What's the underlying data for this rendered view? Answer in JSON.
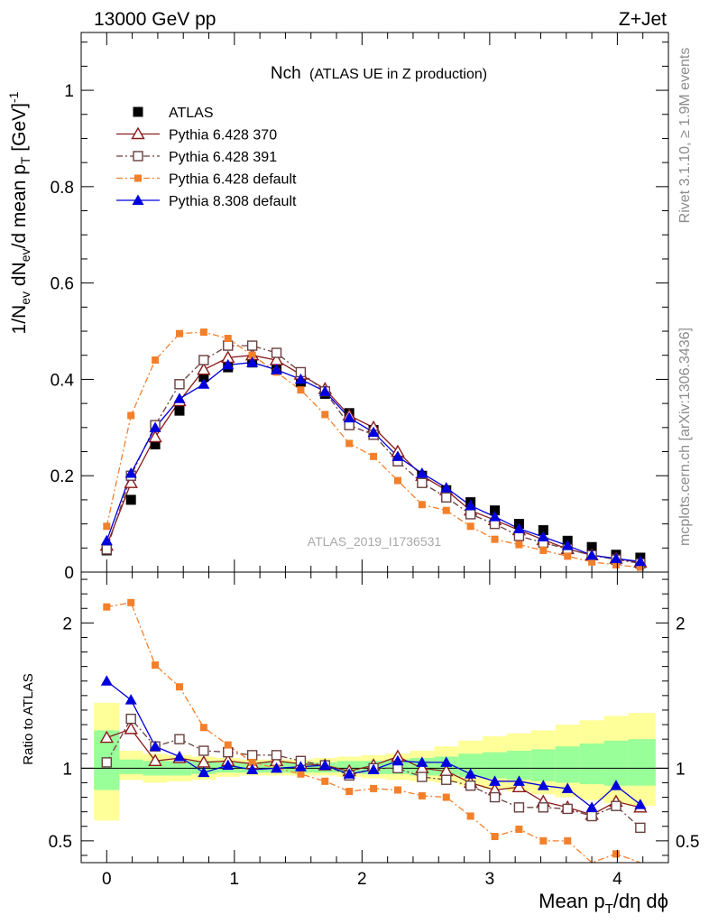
{
  "header": {
    "left": "13000 GeV pp",
    "right": "Z+Jet"
  },
  "plot_title": {
    "main": "Nch",
    "sub": "(ATLAS UE in Z production)"
  },
  "side_labels": {
    "rivet": "Rivet 3.1.10, ≥ 1.9M events",
    "mcplots": "mcplots.cern.ch [arXiv:1306.3436]"
  },
  "analysis_id": "ATLAS_2019_I1736531",
  "axes": {
    "y_main": {
      "prefix": "1/N",
      "p1": "ev",
      "m1": " dN",
      "p2": "ev",
      "m2": "/d mean p",
      "p3": "T",
      "m3": " [GeV]",
      "sup": "-1"
    },
    "y_ratio": "Ratio to ATLAS",
    "x": {
      "prefix": "Mean p",
      "sub": "T",
      "suffix": "/dη dϕ"
    }
  },
  "chart_data": [
    {
      "type": "scatter",
      "panel": "main",
      "xlim": [
        -0.2,
        4.4
      ],
      "ylim": [
        0,
        1.12
      ],
      "x_ticks": [
        0,
        1,
        2,
        3,
        4
      ],
      "y_ticks": [
        0,
        0.2,
        0.4,
        0.6,
        0.8,
        1
      ],
      "y_tick_labels": [
        "0",
        "0.2",
        "0.4",
        "0.6",
        "0.8",
        "1"
      ],
      "legend_position": "top-left",
      "x": [
        0,
        0.19,
        0.38,
        0.57,
        0.76,
        0.95,
        1.14,
        1.33,
        1.52,
        1.71,
        1.9,
        2.09,
        2.28,
        2.47,
        2.66,
        2.85,
        3.04,
        3.23,
        3.42,
        3.61,
        3.8,
        3.99,
        4.18
      ],
      "series": [
        {
          "name": "ATLAS",
          "color": "#000000",
          "marker": "square-filled",
          "line": "none",
          "values": [
            0.045,
            0.15,
            0.265,
            0.335,
            0.405,
            0.425,
            0.435,
            0.42,
            0.395,
            0.37,
            0.33,
            0.295,
            0.23,
            0.2,
            0.17,
            0.145,
            0.128,
            0.1,
            0.087,
            0.065,
            0.052,
            0.036,
            0.03
          ]
        },
        {
          "name": "Pythia 6.428 370",
          "color": "#8b1a1a",
          "marker": "triangle-open",
          "line": "solid",
          "values": [
            0.055,
            0.185,
            0.28,
            0.355,
            0.42,
            0.445,
            0.45,
            0.44,
            0.41,
            0.38,
            0.325,
            0.3,
            0.25,
            0.2,
            0.17,
            0.128,
            0.108,
            0.087,
            0.067,
            0.048,
            0.035,
            0.028,
            0.02
          ]
        },
        {
          "name": "Pythia 6.428 391",
          "color": "#6a4040",
          "marker": "square-open",
          "line": "dashdot",
          "values": [
            0.047,
            0.2,
            0.305,
            0.39,
            0.44,
            0.47,
            0.47,
            0.455,
            0.415,
            0.375,
            0.305,
            0.285,
            0.23,
            0.185,
            0.155,
            0.12,
            0.1,
            0.075,
            0.061,
            0.048,
            0.035,
            0.026,
            0.018
          ]
        },
        {
          "name": "Pythia 6.428 default",
          "color": "#f47f2a",
          "marker": "square-filled-small",
          "line": "dashdot",
          "values": [
            0.095,
            0.325,
            0.44,
            0.495,
            0.498,
            0.485,
            0.45,
            0.415,
            0.378,
            0.327,
            0.267,
            0.24,
            0.19,
            0.14,
            0.128,
            0.095,
            0.068,
            0.057,
            0.045,
            0.033,
            0.021,
            0.015,
            0.01
          ]
        },
        {
          "name": "Pythia 8.308 default",
          "color": "#0000dd",
          "marker": "triangle-filled",
          "line": "solid",
          "values": [
            0.065,
            0.205,
            0.3,
            0.36,
            0.39,
            0.43,
            0.435,
            0.42,
            0.4,
            0.375,
            0.32,
            0.29,
            0.24,
            0.205,
            0.175,
            0.138,
            0.115,
            0.09,
            0.073,
            0.055,
            0.035,
            0.028,
            0.022
          ]
        }
      ]
    },
    {
      "type": "scatter",
      "panel": "ratio",
      "xlim": [
        -0.2,
        4.4
      ],
      "ylim": [
        0.35,
        2.35
      ],
      "x_ticks": [
        0,
        1,
        2,
        3,
        4
      ],
      "x_tick_labels": [
        "0",
        "1",
        "2",
        "3",
        "4"
      ],
      "y_ticks": [
        0.5,
        1,
        2
      ],
      "y_tick_labels": [
        "0.5",
        "1",
        "2"
      ],
      "reference_line": 1,
      "bands": {
        "bins": [
          -0.1,
          0.1,
          0.285,
          0.475,
          0.665,
          0.855,
          1.045,
          1.235,
          1.425,
          1.615,
          1.805,
          1.995,
          2.185,
          2.375,
          2.565,
          2.755,
          2.945,
          3.135,
          3.325,
          3.515,
          3.705,
          3.895,
          4.085,
          4.3
        ],
        "yellow_low": [
          0.64,
          0.92,
          0.9,
          0.91,
          0.92,
          0.94,
          0.95,
          0.95,
          0.95,
          0.95,
          0.94,
          0.93,
          0.92,
          0.91,
          0.9,
          0.88,
          0.86,
          0.84,
          0.82,
          0.8,
          0.78,
          0.76,
          0.74
        ],
        "yellow_high": [
          1.45,
          1.12,
          1.1,
          1.09,
          1.08,
          1.07,
          1.06,
          1.06,
          1.06,
          1.07,
          1.08,
          1.09,
          1.1,
          1.12,
          1.15,
          1.19,
          1.22,
          1.24,
          1.26,
          1.3,
          1.33,
          1.36,
          1.38
        ],
        "green_low": [
          0.85,
          0.96,
          0.95,
          0.95,
          0.96,
          0.97,
          0.97,
          0.97,
          0.97,
          0.97,
          0.97,
          0.96,
          0.96,
          0.95,
          0.95,
          0.94,
          0.93,
          0.92,
          0.91,
          0.9,
          0.89,
          0.88,
          0.88
        ],
        "green_high": [
          1.26,
          1.06,
          1.05,
          1.05,
          1.05,
          1.04,
          1.04,
          1.04,
          1.04,
          1.04,
          1.05,
          1.05,
          1.06,
          1.07,
          1.08,
          1.1,
          1.11,
          1.12,
          1.13,
          1.15,
          1.17,
          1.19,
          1.2
        ]
      },
      "x": [
        0,
        0.19,
        0.38,
        0.57,
        0.76,
        0.95,
        1.14,
        1.33,
        1.52,
        1.71,
        1.9,
        2.09,
        2.28,
        2.47,
        2.66,
        2.85,
        3.04,
        3.23,
        3.42,
        3.61,
        3.8,
        3.99,
        4.18
      ],
      "series": [
        {
          "name": "Pythia 6.428 370",
          "color": "#8b1a1a",
          "marker": "triangle-open",
          "line": "solid",
          "values": [
            1.21,
            1.27,
            1.05,
            1.07,
            1.04,
            1.05,
            1.03,
            1.05,
            1.03,
            1.02,
            0.98,
            1.02,
            1.08,
            1.0,
            0.98,
            0.9,
            0.85,
            0.87,
            0.77,
            0.73,
            0.68,
            0.77,
            0.73
          ]
        },
        {
          "name": "Pythia 6.428 391",
          "color": "#6a4040",
          "marker": "square-open",
          "line": "dashdot",
          "values": [
            1.04,
            1.34,
            1.15,
            1.2,
            1.12,
            1.11,
            1.09,
            1.09,
            1.05,
            1.02,
            0.95,
            1.0,
            1.0,
            0.94,
            0.92,
            0.88,
            0.8,
            0.73,
            0.73,
            0.72,
            0.67,
            0.74,
            0.59
          ]
        },
        {
          "name": "Pythia 6.428 default",
          "color": "#f47f2a",
          "marker": "square-filled-small",
          "line": "dashdot",
          "values": [
            2.11,
            2.14,
            1.71,
            1.56,
            1.28,
            1.16,
            1.04,
            1.0,
            0.96,
            0.91,
            0.84,
            0.86,
            0.85,
            0.81,
            0.8,
            0.67,
            0.53,
            0.58,
            0.5,
            0.5,
            0.31,
            0.41,
            0.33
          ]
        },
        {
          "name": "Pythia 8.308 default",
          "color": "#0000dd",
          "marker": "triangle-filled",
          "line": "solid",
          "values": [
            1.6,
            1.47,
            1.15,
            1.08,
            0.97,
            1.02,
            0.99,
            1.0,
            1.01,
            1.02,
            0.96,
            0.99,
            1.05,
            1.04,
            1.04,
            0.96,
            0.91,
            0.91,
            0.88,
            0.86,
            0.73,
            0.88,
            0.75
          ]
        }
      ]
    }
  ]
}
